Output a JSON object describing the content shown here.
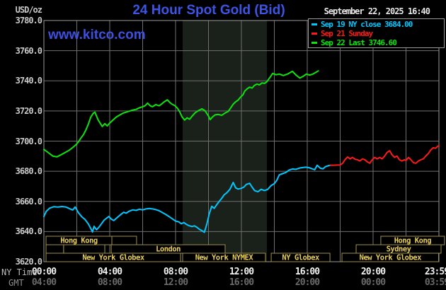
{
  "header": {
    "unit_label": "USD/oz",
    "title": "24 Hour Spot Gold (Bid)",
    "datetime": "September 22, 2025 16:40",
    "watermark": "www.kitco.com"
  },
  "legend": [
    {
      "label": "Sep 19 NY close 3684.00",
      "color": "#00c8ff"
    },
    {
      "label": "Sep 21 Sunday",
      "color": "#ff1a1a"
    },
    {
      "label": "Sep 22 Last 3746.60",
      "color": "#0ce40c"
    }
  ],
  "axes": {
    "ny_row_label": "NY Time",
    "gmt_row_label": "GMT",
    "y_ticks": [
      {
        "value": 3780,
        "label": "3780.0"
      },
      {
        "value": 3760,
        "label": "3760.0"
      },
      {
        "value": 3740,
        "label": "3740.0"
      },
      {
        "value": 3720,
        "label": "3720.0"
      },
      {
        "value": 3700,
        "label": "3700.0"
      },
      {
        "value": 3680,
        "label": "3680.0"
      },
      {
        "value": 3660,
        "label": "3660.0"
      },
      {
        "value": 3640,
        "label": "3640.0"
      },
      {
        "value": 3620,
        "label": "3620.0"
      }
    ],
    "x_ticks": [
      {
        "t": 0,
        "ny": "00:00",
        "gmt": "04:00"
      },
      {
        "t": 4,
        "ny": "04:00",
        "gmt": "08:00"
      },
      {
        "t": 8,
        "ny": "08:00",
        "gmt": "12:00"
      },
      {
        "t": 12,
        "ny": "12:00",
        "gmt": "16:00"
      },
      {
        "t": 16,
        "ny": "16:00",
        "gmt": "20:00"
      },
      {
        "t": 20,
        "ny": "20:00",
        "gmt": "00:00"
      },
      {
        "t": 23.87,
        "ny": "23:59",
        "gmt": "03:59"
      }
    ]
  },
  "colors": {
    "background": "#000000",
    "frame": "#9a9a9a",
    "grid": "#6f6f6f",
    "highlight_band": "#1a211b",
    "session_border": "#9e9148",
    "session_text": "#e8ce58",
    "title_blue": "#3d55e6",
    "cyan": "#00c8ff",
    "red": "#ff1a1a",
    "green": "#0ce40c"
  },
  "chart_data": {
    "type": "line",
    "title": "24 Hour Spot Gold (Bid)",
    "y_axis": {
      "label": "USD/oz",
      "range": [
        3620,
        3780
      ],
      "tick_step": 20,
      "grid": true
    },
    "x_axis": {
      "label": "NY Time / GMT",
      "range_hours": [
        0,
        24
      ],
      "gridline_every_hours": 2
    },
    "highlight_band": {
      "name": "nymex-floor-session",
      "t_start": 8.43,
      "t_end": 13.55
    },
    "series": [
      {
        "name": "Sep 19 NY close",
        "legend_value": 3684.0,
        "color": "#00c8ff",
        "points": [
          [
            0,
            3650
          ],
          [
            0.15,
            3653.5
          ],
          [
            0.35,
            3655.5
          ],
          [
            0.6,
            3656.5
          ],
          [
            0.85,
            3656.2
          ],
          [
            1.1,
            3656.6
          ],
          [
            1.35,
            3656.2
          ],
          [
            1.6,
            3655
          ],
          [
            1.75,
            3654.3
          ],
          [
            1.9,
            3656.3
          ],
          [
            2.1,
            3652.5
          ],
          [
            2.3,
            3649.8
          ],
          [
            2.5,
            3648
          ],
          [
            2.7,
            3645
          ],
          [
            2.85,
            3642
          ],
          [
            2.95,
            3639.7
          ],
          [
            3.05,
            3643.5
          ],
          [
            3.2,
            3641.2
          ],
          [
            3.35,
            3643
          ],
          [
            3.5,
            3645.2
          ],
          [
            3.65,
            3647.5
          ],
          [
            3.8,
            3648.8
          ],
          [
            3.95,
            3650
          ],
          [
            4.1,
            3648.2
          ],
          [
            4.25,
            3647.3
          ],
          [
            4.4,
            3648.8
          ],
          [
            4.55,
            3650.2
          ],
          [
            4.7,
            3651.6
          ],
          [
            4.85,
            3652.8
          ],
          [
            5,
            3652.2
          ],
          [
            5.2,
            3653.6
          ],
          [
            5.4,
            3654.4
          ],
          [
            5.6,
            3654
          ],
          [
            5.8,
            3654.8
          ],
          [
            6,
            3654.4
          ],
          [
            6.2,
            3655
          ],
          [
            6.4,
            3655.3
          ],
          [
            6.6,
            3655
          ],
          [
            6.8,
            3654.6
          ],
          [
            7,
            3653.8
          ],
          [
            7.2,
            3652.6
          ],
          [
            7.4,
            3651.4
          ],
          [
            7.6,
            3650
          ],
          [
            7.8,
            3648.5
          ],
          [
            8,
            3647
          ],
          [
            8.2,
            3646.4
          ],
          [
            8.35,
            3645.2
          ],
          [
            8.5,
            3646
          ],
          [
            8.65,
            3644.8
          ],
          [
            8.8,
            3644
          ],
          [
            9,
            3643.3
          ],
          [
            9.15,
            3643.8
          ],
          [
            9.3,
            3642.8
          ],
          [
            9.45,
            3641.5
          ],
          [
            9.6,
            3640.6
          ],
          [
            9.75,
            3639.5
          ],
          [
            9.9,
            3645
          ],
          [
            10.05,
            3652
          ],
          [
            10.2,
            3656.8
          ],
          [
            10.35,
            3655.4
          ],
          [
            10.5,
            3657.8
          ],
          [
            10.65,
            3660
          ],
          [
            10.8,
            3662
          ],
          [
            10.95,
            3664.4
          ],
          [
            11.1,
            3665.6
          ],
          [
            11.3,
            3668
          ],
          [
            11.5,
            3672.6
          ],
          [
            11.65,
            3669
          ],
          [
            11.8,
            3668.2
          ],
          [
            12,
            3668.7
          ],
          [
            12.15,
            3669.5
          ],
          [
            12.3,
            3671.3
          ],
          [
            12.5,
            3672
          ],
          [
            12.65,
            3669.5
          ],
          [
            12.8,
            3667.2
          ],
          [
            13,
            3666.4
          ],
          [
            13.2,
            3668
          ],
          [
            13.4,
            3667.2
          ],
          [
            13.6,
            3668
          ],
          [
            13.8,
            3670.5
          ],
          [
            14,
            3671.8
          ],
          [
            14.15,
            3674
          ],
          [
            14.3,
            3677.6
          ],
          [
            14.5,
            3678.4
          ],
          [
            14.7,
            3679.2
          ],
          [
            14.9,
            3680.8
          ],
          [
            15.1,
            3681.5
          ],
          [
            15.3,
            3681.3
          ],
          [
            15.6,
            3682.3
          ],
          [
            15.9,
            3682.7
          ],
          [
            16.1,
            3682.4
          ],
          [
            16.3,
            3681.6
          ],
          [
            16.45,
            3681
          ],
          [
            16.6,
            3684
          ],
          [
            16.8,
            3682
          ],
          [
            16.95,
            3681.6
          ],
          [
            17.1,
            3683
          ],
          [
            17.25,
            3683.6
          ],
          [
            17.4,
            3684
          ]
        ]
      },
      {
        "name": "Sep 21 Sunday",
        "color": "#ff1a1a",
        "points": [
          [
            17.4,
            3684
          ],
          [
            17.6,
            3684
          ],
          [
            17.8,
            3684.1
          ],
          [
            18,
            3684.2
          ],
          [
            18.15,
            3685.3
          ],
          [
            18.3,
            3687.8
          ],
          [
            18.45,
            3689.5
          ],
          [
            18.6,
            3688.2
          ],
          [
            18.75,
            3689.2
          ],
          [
            18.9,
            3688
          ],
          [
            19.05,
            3687.6
          ],
          [
            19.2,
            3686.8
          ],
          [
            19.35,
            3688.2
          ],
          [
            19.5,
            3687.6
          ],
          [
            19.65,
            3686.2
          ],
          [
            19.8,
            3685.3
          ],
          [
            19.95,
            3687.6
          ],
          [
            20.1,
            3689.2
          ],
          [
            20.25,
            3688.2
          ],
          [
            20.4,
            3689.2
          ],
          [
            20.55,
            3688.2
          ],
          [
            20.7,
            3690.1
          ],
          [
            20.85,
            3692.5
          ],
          [
            21,
            3693.6
          ],
          [
            21.15,
            3691
          ],
          [
            21.3,
            3689.2
          ],
          [
            21.45,
            3690.1
          ],
          [
            21.6,
            3687.6
          ],
          [
            21.75,
            3686.8
          ],
          [
            21.9,
            3687.6
          ],
          [
            22,
            3687.1
          ],
          [
            22.15,
            3689.2
          ],
          [
            22.3,
            3687.6
          ],
          [
            22.45,
            3685.7
          ],
          [
            22.6,
            3685.3
          ],
          [
            22.75,
            3686.8
          ],
          [
            22.9,
            3687.6
          ],
          [
            23.05,
            3688.2
          ],
          [
            23.2,
            3690.1
          ],
          [
            23.35,
            3691.7
          ],
          [
            23.5,
            3694.1
          ],
          [
            23.65,
            3695.6
          ],
          [
            23.8,
            3695.2
          ],
          [
            23.95,
            3696.8
          ],
          [
            24,
            3697
          ]
        ]
      },
      {
        "name": "Sep 22 Last",
        "legend_value": 3746.6,
        "color": "#0ce40c",
        "points": [
          [
            0,
            3694.5
          ],
          [
            0.25,
            3692.5
          ],
          [
            0.55,
            3690
          ],
          [
            0.8,
            3689.6
          ],
          [
            1.05,
            3691
          ],
          [
            1.3,
            3692.5
          ],
          [
            1.55,
            3694
          ],
          [
            1.8,
            3696.2
          ],
          [
            1.95,
            3697.6
          ],
          [
            2.1,
            3699.5
          ],
          [
            2.25,
            3702
          ],
          [
            2.4,
            3704.2
          ],
          [
            2.55,
            3707.3
          ],
          [
            2.7,
            3711.3
          ],
          [
            2.85,
            3716
          ],
          [
            3,
            3718.5
          ],
          [
            3.1,
            3719.2
          ],
          [
            3.3,
            3714
          ],
          [
            3.55,
            3709.7
          ],
          [
            3.7,
            3711.6
          ],
          [
            3.85,
            3710.1
          ],
          [
            4,
            3712
          ],
          [
            4.2,
            3714
          ],
          [
            4.4,
            3716
          ],
          [
            4.6,
            3717.2
          ],
          [
            4.8,
            3718.5
          ],
          [
            5,
            3719.2
          ],
          [
            5.2,
            3719.9
          ],
          [
            5.4,
            3720.6
          ],
          [
            5.6,
            3721
          ],
          [
            5.8,
            3722.1
          ],
          [
            6,
            3722.8
          ],
          [
            6.15,
            3723.5
          ],
          [
            6.3,
            3725.2
          ],
          [
            6.45,
            3723.5
          ],
          [
            6.6,
            3722.8
          ],
          [
            6.8,
            3724.2
          ],
          [
            7,
            3723.4
          ],
          [
            7.15,
            3724.6
          ],
          [
            7.3,
            3726
          ],
          [
            7.5,
            3727.4
          ],
          [
            7.65,
            3725.6
          ],
          [
            7.8,
            3724.4
          ],
          [
            7.95,
            3723.6
          ],
          [
            8.1,
            3722
          ],
          [
            8.25,
            3719.5
          ],
          [
            8.4,
            3716
          ],
          [
            8.55,
            3714
          ],
          [
            8.7,
            3715.5
          ],
          [
            8.85,
            3714.5
          ],
          [
            9,
            3716.5
          ],
          [
            9.2,
            3718.9
          ],
          [
            9.4,
            3720.2
          ],
          [
            9.6,
            3721.4
          ],
          [
            9.8,
            3720
          ],
          [
            10,
            3716.6
          ],
          [
            10.1,
            3714.2
          ],
          [
            10.25,
            3716.1
          ],
          [
            10.4,
            3717.4
          ],
          [
            10.6,
            3717.7
          ],
          [
            10.8,
            3717.1
          ],
          [
            11,
            3718.6
          ],
          [
            11.2,
            3719.7
          ],
          [
            11.35,
            3722.1
          ],
          [
            11.5,
            3724.5
          ],
          [
            11.65,
            3726.1
          ],
          [
            11.8,
            3727.2
          ],
          [
            11.95,
            3729.2
          ],
          [
            12.1,
            3730.8
          ],
          [
            12.2,
            3733.1
          ],
          [
            12.35,
            3734.7
          ],
          [
            12.5,
            3735.8
          ],
          [
            12.65,
            3735.2
          ],
          [
            12.8,
            3737
          ],
          [
            12.95,
            3737.8
          ],
          [
            13.1,
            3737.3
          ],
          [
            13.25,
            3738.6
          ],
          [
            13.4,
            3738.3
          ],
          [
            13.55,
            3739.4
          ],
          [
            13.65,
            3741
          ],
          [
            13.75,
            3742.5
          ],
          [
            13.9,
            3744.9
          ],
          [
            14.1,
            3744
          ],
          [
            14.3,
            3744.5
          ],
          [
            14.55,
            3743.5
          ],
          [
            14.8,
            3744.5
          ],
          [
            15.1,
            3746.3
          ],
          [
            15.3,
            3744
          ],
          [
            15.55,
            3741.8
          ],
          [
            15.75,
            3743
          ],
          [
            15.95,
            3744.5
          ],
          [
            16.15,
            3743.8
          ],
          [
            16.35,
            3744.5
          ],
          [
            16.55,
            3745.8
          ],
          [
            16.67,
            3746.6
          ]
        ]
      }
    ],
    "sessions": [
      {
        "row": 0,
        "start": 0.13,
        "end": 4.13,
        "label": "Hong Kong"
      },
      {
        "row": 0,
        "start": 4.13,
        "end": 5.63,
        "label": ""
      },
      {
        "row": 0,
        "start": 20.47,
        "end": 24.34,
        "label": "Hong Kong"
      },
      {
        "row": 1,
        "start": 0.13,
        "end": 1.2,
        "label": ""
      },
      {
        "row": 1,
        "start": 1.2,
        "end": 3.7,
        "label": ""
      },
      {
        "row": 1,
        "start": 4.09,
        "end": 11.01,
        "label": "London"
      },
      {
        "row": 1,
        "start": 18.97,
        "end": 24.13,
        "label": "Sydney"
      },
      {
        "row": 2,
        "start": 0.13,
        "end": 8.3,
        "label": "New York Globex"
      },
      {
        "row": 2,
        "start": 8.43,
        "end": 13.46,
        "label": "New York NYMEX"
      },
      {
        "row": 2,
        "start": 13.81,
        "end": 17.38,
        "label": "NY Globex"
      },
      {
        "row": 2,
        "start": 18.11,
        "end": 23.98,
        "label": "New York Globex"
      }
    ]
  }
}
